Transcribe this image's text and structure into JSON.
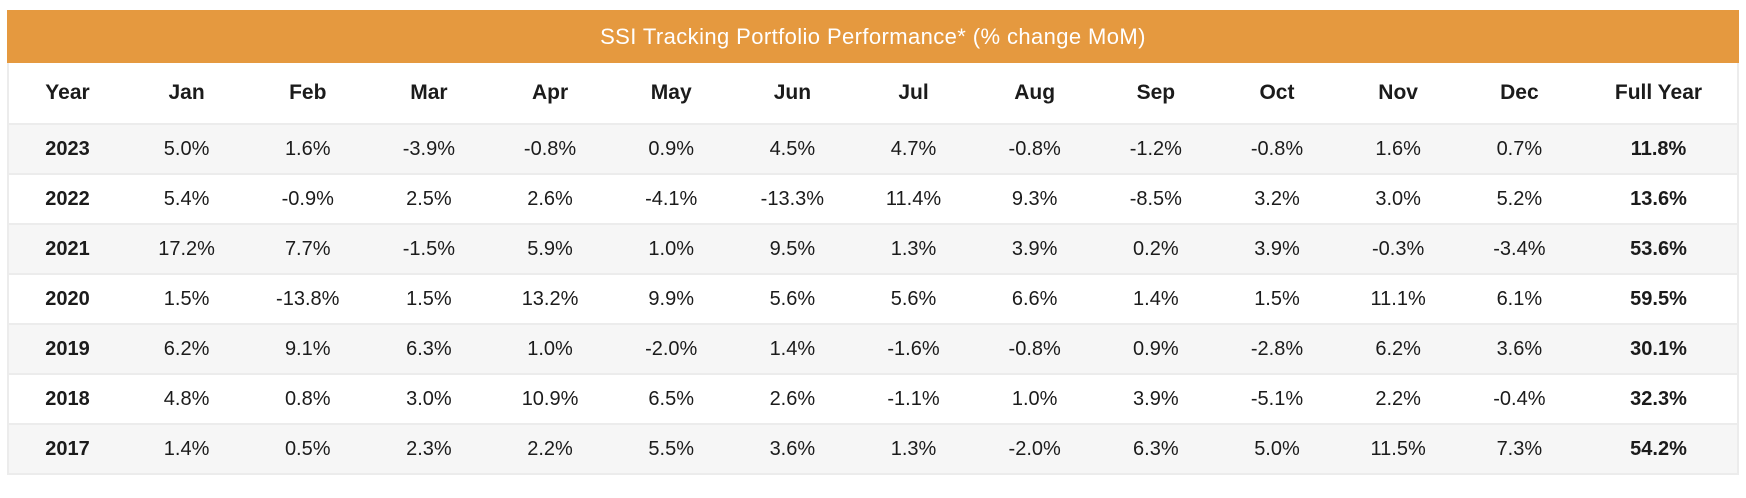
{
  "table": {
    "title": "SSI Tracking Portfolio Performance* (% change MoM)",
    "columns": [
      "Year",
      "Jan",
      "Feb",
      "Mar",
      "Apr",
      "May",
      "Jun",
      "Jul",
      "Aug",
      "Sep",
      "Oct",
      "Nov",
      "Dec",
      "Full Year"
    ],
    "rows": [
      {
        "year": "2023",
        "values": [
          "5.0%",
          "1.6%",
          "-3.9%",
          "-0.8%",
          "0.9%",
          "4.5%",
          "4.7%",
          "-0.8%",
          "-1.2%",
          "-0.8%",
          "1.6%",
          "0.7%"
        ],
        "full_year": "11.8%"
      },
      {
        "year": "2022",
        "values": [
          "5.4%",
          "-0.9%",
          "2.5%",
          "2.6%",
          "-4.1%",
          "-13.3%",
          "11.4%",
          "9.3%",
          "-8.5%",
          "3.2%",
          "3.0%",
          "5.2%"
        ],
        "full_year": "13.6%"
      },
      {
        "year": "2021",
        "values": [
          "17.2%",
          "7.7%",
          "-1.5%",
          "5.9%",
          "1.0%",
          "9.5%",
          "1.3%",
          "3.9%",
          "0.2%",
          "3.9%",
          "-0.3%",
          "-3.4%"
        ],
        "full_year": "53.6%"
      },
      {
        "year": "2020",
        "values": [
          "1.5%",
          "-13.8%",
          "1.5%",
          "13.2%",
          "9.9%",
          "5.6%",
          "5.6%",
          "6.6%",
          "1.4%",
          "1.5%",
          "11.1%",
          "6.1%"
        ],
        "full_year": "59.5%"
      },
      {
        "year": "2019",
        "values": [
          "6.2%",
          "9.1%",
          "6.3%",
          "1.0%",
          "-2.0%",
          "1.4%",
          "-1.6%",
          "-0.8%",
          "0.9%",
          "-2.8%",
          "6.2%",
          "3.6%"
        ],
        "full_year": "30.1%"
      },
      {
        "year": "2018",
        "values": [
          "4.8%",
          "0.8%",
          "3.0%",
          "10.9%",
          "6.5%",
          "2.6%",
          "-1.1%",
          "1.0%",
          "3.9%",
          "-5.1%",
          "2.2%",
          "-0.4%"
        ],
        "full_year": "32.3%"
      },
      {
        "year": "2017",
        "values": [
          "1.4%",
          "0.5%",
          "2.3%",
          "2.2%",
          "5.5%",
          "3.6%",
          "1.3%",
          "-2.0%",
          "6.3%",
          "5.0%",
          "11.5%",
          "7.3%"
        ],
        "full_year": "54.2%"
      }
    ],
    "colors": {
      "header_bg": "#E5993F",
      "header_text": "#FFFFFF",
      "row_alt_bg": "#F6F6F6",
      "row_bg": "#FFFFFF",
      "border": "#ECECEC",
      "text": "#1B1B1B"
    }
  },
  "chart_data": {
    "type": "table",
    "title": "SSI Tracking Portfolio Performance* (% change MoM)",
    "unit": "% change MoM",
    "columns": [
      "Year",
      "Jan",
      "Feb",
      "Mar",
      "Apr",
      "May",
      "Jun",
      "Jul",
      "Aug",
      "Sep",
      "Oct",
      "Nov",
      "Dec",
      "Full Year"
    ],
    "rows": [
      {
        "year": 2023,
        "monthly_pct": [
          5.0,
          1.6,
          -3.9,
          -0.8,
          0.9,
          4.5,
          4.7,
          -0.8,
          -1.2,
          -0.8,
          1.6,
          0.7
        ],
        "full_year_pct": 11.8
      },
      {
        "year": 2022,
        "monthly_pct": [
          5.4,
          -0.9,
          2.5,
          2.6,
          -4.1,
          -13.3,
          11.4,
          9.3,
          -8.5,
          3.2,
          3.0,
          5.2
        ],
        "full_year_pct": 13.6
      },
      {
        "year": 2021,
        "monthly_pct": [
          17.2,
          7.7,
          -1.5,
          5.9,
          1.0,
          9.5,
          1.3,
          3.9,
          0.2,
          3.9,
          -0.3,
          -3.4
        ],
        "full_year_pct": 53.6
      },
      {
        "year": 2020,
        "monthly_pct": [
          1.5,
          -13.8,
          1.5,
          13.2,
          9.9,
          5.6,
          5.6,
          6.6,
          1.4,
          1.5,
          11.1,
          6.1
        ],
        "full_year_pct": 59.5
      },
      {
        "year": 2019,
        "monthly_pct": [
          6.2,
          9.1,
          6.3,
          1.0,
          -2.0,
          1.4,
          -1.6,
          -0.8,
          0.9,
          -2.8,
          6.2,
          3.6
        ],
        "full_year_pct": 30.1
      },
      {
        "year": 2018,
        "monthly_pct": [
          4.8,
          0.8,
          3.0,
          10.9,
          6.5,
          2.6,
          -1.1,
          1.0,
          3.9,
          -5.1,
          2.2,
          -0.4
        ],
        "full_year_pct": 32.3
      },
      {
        "year": 2017,
        "monthly_pct": [
          1.4,
          0.5,
          2.3,
          2.2,
          5.5,
          3.6,
          1.3,
          -2.0,
          6.3,
          5.0,
          11.5,
          7.3
        ],
        "full_year_pct": 54.2
      }
    ]
  }
}
